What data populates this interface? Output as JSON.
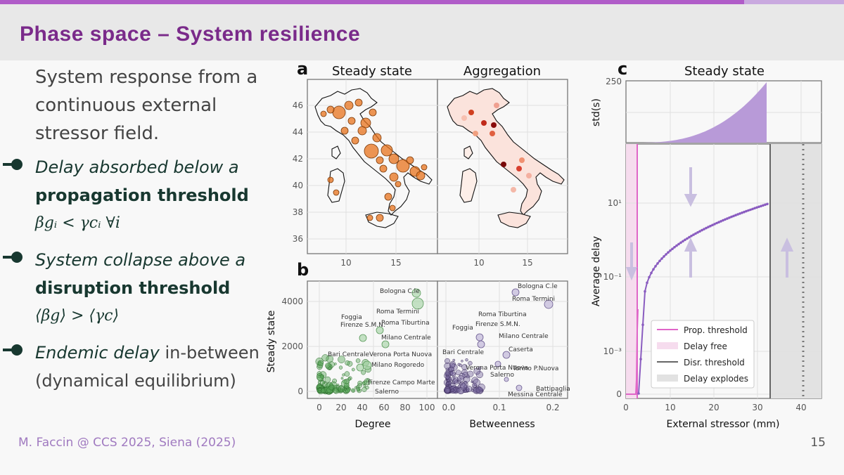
{
  "slide": {
    "title": "Phase space – System resilience",
    "intro": "System response from a continuous external stressor field.",
    "bullets": [
      {
        "em": "Delay absorbed below a",
        "bold": "propagation threshold",
        "math": "βgᵢ < γcᵢ ∀i"
      },
      {
        "em": "System collapse above a",
        "bold": "disruption threshold",
        "math": "⟨βg⟩ > ⟨γc⟩"
      },
      {
        "em": "Endemic delay",
        "rest": " in-between",
        "line2": "(dynamical equilibrium)"
      }
    ],
    "footer": "M. Faccin @ CCS 2025, Siena (2025)",
    "page_number": "15"
  },
  "panel_a": {
    "label": "a",
    "left_title": "Steady state",
    "right_title": "Aggregation",
    "lat_ticks": [
      "46",
      "44",
      "42",
      "40",
      "38",
      "36"
    ],
    "lon_ticks": [
      "10",
      "15"
    ]
  },
  "panel_b": {
    "label": "b",
    "ylabel": "Steady state",
    "left_xlabel": "Degree",
    "right_xlabel": "Betweenness",
    "y_ticks": [
      "4000",
      "2000",
      "0"
    ],
    "left_x_ticks": [
      "0",
      "20",
      "40",
      "60",
      "80",
      "100"
    ],
    "right_x_ticks": [
      "0.0",
      "0.1",
      "0.2"
    ],
    "left_labels": [
      "Bologna C.le",
      "Roma Termini",
      "Foggia",
      "Firenze S.M.N.",
      "Roma Tiburtina",
      "Milano Centrale",
      "Bari Centrale",
      "Verona Porta Nuova",
      "Milano Rogoredo",
      "Firenze Campo Marte",
      "Salerno"
    ],
    "right_labels": [
      "Bologna C.le",
      "Roma Termini",
      "Roma Tiburtina",
      "Foggia",
      "Firenze S.M.N.",
      "Milano Centrale",
      "Bari Centrale",
      "Caserta",
      "Verona Porta Nuova",
      "Torino P.Nuova",
      "Salerno",
      "Battipaglia",
      "Messina Centrale"
    ]
  },
  "panel_c": {
    "label": "c",
    "top_title": "Steady state",
    "top_ylabel": "std(s)",
    "top_y_tick": "250",
    "ylabel": "Average delay",
    "xlabel": "External stressor (mm)",
    "y_ticks": [
      "10¹",
      "10⁻¹",
      "10⁻³",
      "0"
    ],
    "x_ticks": [
      "0",
      "10",
      "20",
      "30",
      "40"
    ],
    "legend": [
      "Prop. threshold",
      "Delay free",
      "Disr. threshold",
      "Delay explodes"
    ]
  },
  "colors": {
    "title": "#7a2a8a",
    "accent": "#b05cc8",
    "orange": "#e8731c",
    "purple_curve": "#8a5cc0",
    "green": "#6cbf6c",
    "lilac": "#a999cf"
  }
}
